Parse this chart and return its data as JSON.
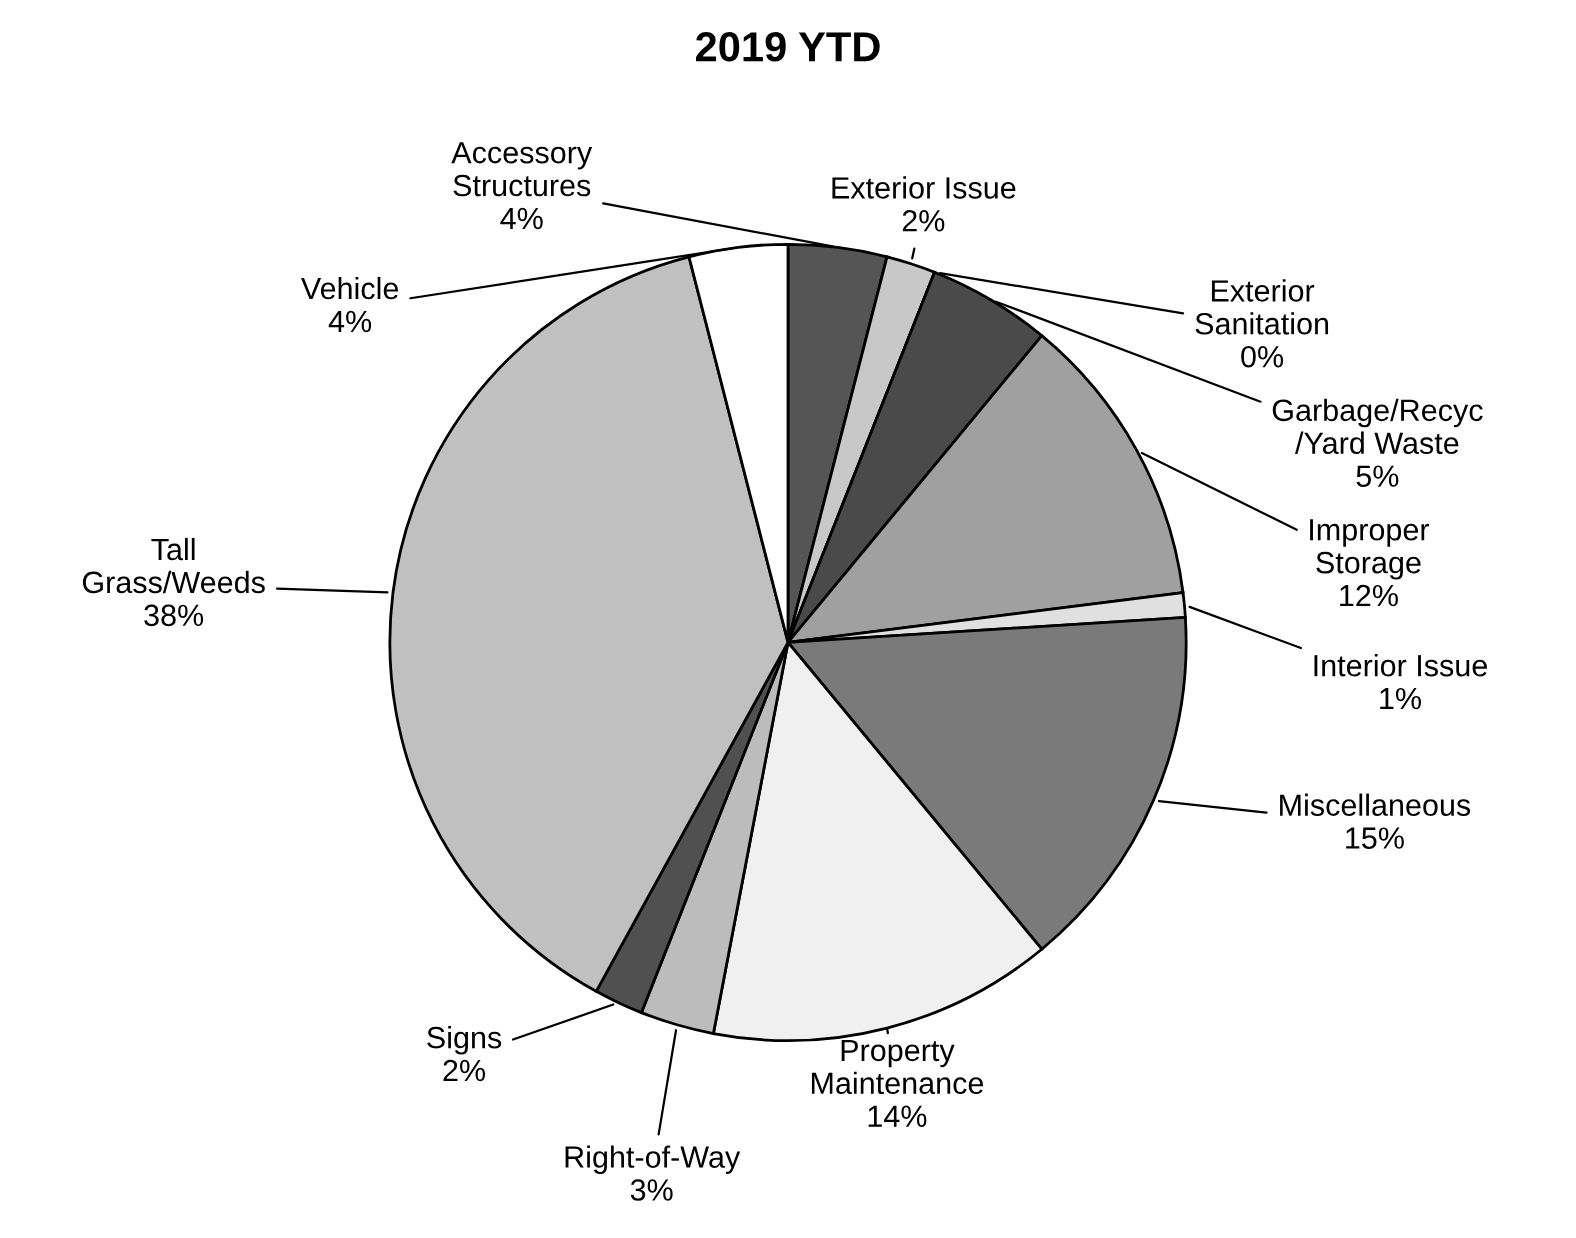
{
  "chart_data": {
    "type": "pie",
    "title": "2019 YTD",
    "categories": [
      "Accessory\nStructures",
      "Exterior Issue",
      "Exterior\nSanitation",
      "Garbage/Recyc\n/Yard Waste",
      "Improper\nStorage",
      "Interior Issue",
      "Miscellaneous",
      "Property\nMaintenance",
      "Right-of-Way",
      "Signs",
      "Tall\nGrass/Weeds",
      "Vehicle"
    ],
    "values": [
      4,
      2,
      0,
      5,
      12,
      1,
      15,
      14,
      3,
      2,
      38,
      4
    ],
    "colors": [
      "#555555",
      "#c8c8c8",
      "#333333",
      "#4a4a4a",
      "#a0a0a0",
      "#e0e0e0",
      "#7a7a7a",
      "#f0f0f0",
      "#bcbcbc",
      "#505050",
      "#c0c0c0",
      "#ffffff"
    ],
    "value_labels": [
      "4%",
      "2%",
      "0%",
      "5%",
      "12%",
      "1%",
      "15%",
      "14%",
      "3%",
      "2%",
      "38%",
      "4%"
    ]
  }
}
